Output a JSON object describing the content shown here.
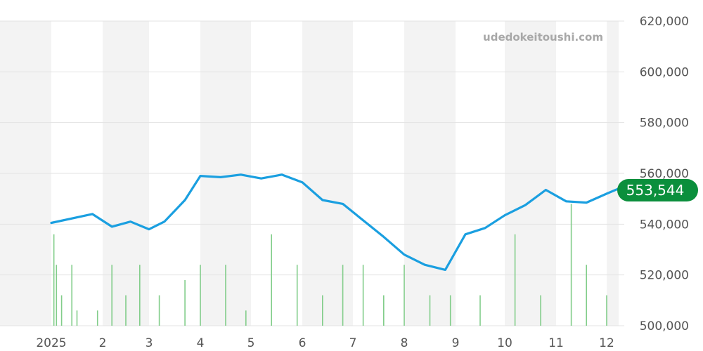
{
  "watermark": "udedokeitoushi.com",
  "chart_data": {
    "type": "line",
    "x_tick_labels": [
      "2025",
      "2",
      "3",
      "4",
      "5",
      "6",
      "7",
      "8",
      "9",
      "10",
      "11",
      "12"
    ],
    "y_tick_labels": [
      "620,000",
      "600,000",
      "580,000",
      "560,000",
      "540,000",
      "520,000",
      "500,000"
    ],
    "ylim": [
      500000,
      620000
    ],
    "grid": true,
    "current_value_label": "553,544",
    "colors": {
      "line": "#1a9fe0",
      "volume": "#82cd8a",
      "badge": "#0b8f3c",
      "band": "#f3f3f3",
      "grid": "#e3e3e3"
    },
    "series": [
      {
        "x": [
          0.0,
          0.8,
          1.2,
          1.6,
          2.0,
          2.3,
          2.7,
          3.0,
          3.4,
          3.8,
          4.2,
          4.6,
          5.0,
          5.4,
          5.8,
          6.2,
          6.6,
          7.0,
          7.4,
          7.8,
          8.2,
          8.6,
          9.0,
          9.4,
          9.8,
          10.2,
          10.6,
          11.0,
          11.4,
          11.8
        ],
        "values": [
          540500,
          544000,
          539000,
          541000,
          538000,
          541000,
          549500,
          559000,
          558500,
          559500,
          558000,
          559500,
          556500,
          549500,
          548000,
          541500,
          535000,
          528000,
          524000,
          522000,
          536000,
          538500,
          543500,
          547500,
          553500,
          549000,
          548500,
          552000,
          554000,
          554000
        ]
      }
    ],
    "volume_bars": [
      {
        "x": 0.05,
        "h": 0.3
      },
      {
        "x": 0.1,
        "h": 0.2
      },
      {
        "x": 0.2,
        "h": 0.1
      },
      {
        "x": 0.4,
        "h": 0.2
      },
      {
        "x": 0.5,
        "h": 0.05
      },
      {
        "x": 0.9,
        "h": 0.05
      },
      {
        "x": 1.2,
        "h": 0.2
      },
      {
        "x": 1.5,
        "h": 0.1
      },
      {
        "x": 1.8,
        "h": 0.2
      },
      {
        "x": 2.2,
        "h": 0.1
      },
      {
        "x": 2.7,
        "h": 0.15
      },
      {
        "x": 3.0,
        "h": 0.2
      },
      {
        "x": 3.5,
        "h": 0.2
      },
      {
        "x": 3.9,
        "h": 0.05
      },
      {
        "x": 4.4,
        "h": 0.3
      },
      {
        "x": 4.9,
        "h": 0.2
      },
      {
        "x": 5.4,
        "h": 0.1
      },
      {
        "x": 5.8,
        "h": 0.2
      },
      {
        "x": 6.2,
        "h": 0.2
      },
      {
        "x": 6.6,
        "h": 0.1
      },
      {
        "x": 7.0,
        "h": 0.2
      },
      {
        "x": 7.5,
        "h": 0.1
      },
      {
        "x": 7.9,
        "h": 0.1
      },
      {
        "x": 8.5,
        "h": 0.1
      },
      {
        "x": 9.2,
        "h": 0.3
      },
      {
        "x": 9.7,
        "h": 0.1
      },
      {
        "x": 10.3,
        "h": 0.4
      },
      {
        "x": 10.6,
        "h": 0.2
      },
      {
        "x": 11.0,
        "h": 0.1
      },
      {
        "x": 11.5,
        "h": 0.1
      }
    ]
  }
}
